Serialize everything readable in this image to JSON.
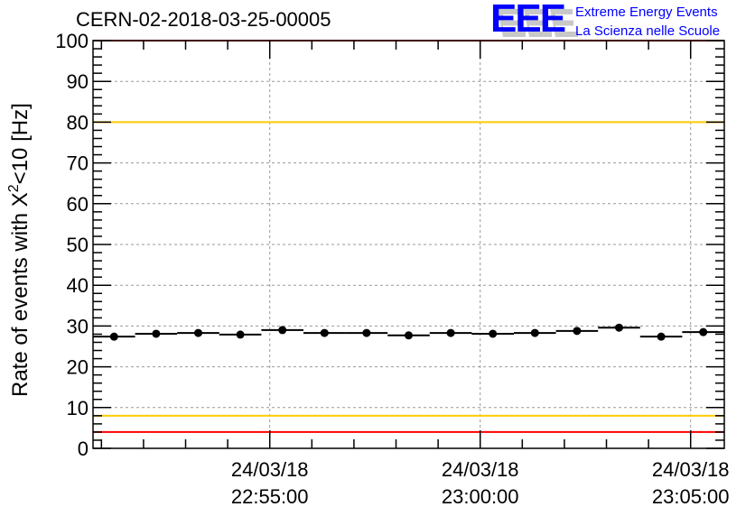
{
  "chart_data": {
    "type": "scatter",
    "title": "CERN-02-2018-03-25-00005",
    "ylabel": "Rate of events with X",
    "ylabel_sup": "2",
    "ylabel_tail": "<10 [Hz]",
    "xlabel": "",
    "ylim": [
      0,
      100
    ],
    "yticks": [
      "0",
      "10",
      "20",
      "30",
      "40",
      "50",
      "60",
      "70",
      "80",
      "90",
      "100"
    ],
    "xlim_minutes": [
      -4.2,
      10.8
    ],
    "xticks": [
      {
        "minute": 0,
        "date": "24/03/18",
        "time": "22:55:00"
      },
      {
        "minute": 5,
        "date": "24/03/18",
        "time": "23:00:00"
      },
      {
        "minute": 10,
        "date": "24/03/18",
        "time": "23:05:00"
      }
    ],
    "bin_width_minutes": 1,
    "values": [
      27.4,
      28.1,
      28.3,
      27.9,
      29.0,
      28.3,
      28.3,
      27.7,
      28.3,
      28.1,
      28.3,
      28.8,
      29.6,
      27.4,
      28.5
    ],
    "reference_lines": [
      {
        "value": 100,
        "color": "#ff0000"
      },
      {
        "value": 80,
        "color": "#ffcc00"
      },
      {
        "value": 8,
        "color": "#ffcc00"
      },
      {
        "value": 4,
        "color": "#ff0000"
      }
    ],
    "grid": true
  },
  "logo": {
    "text": "EEE",
    "line1": "Extreme Energy Events",
    "line2": "La Scienza nelle Scuole",
    "color": "#0000ff"
  }
}
